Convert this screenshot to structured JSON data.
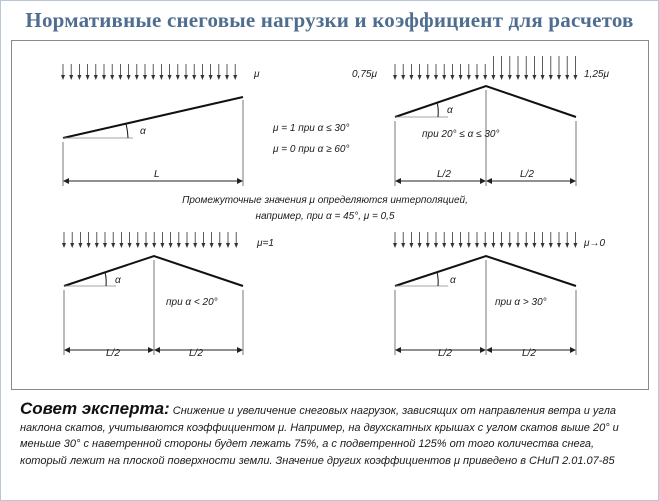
{
  "title": "Нормативные снеговые нагрузки и коэффициент для расчетов",
  "diagram": {
    "panel1": {
      "mu": "μ",
      "angle": "α",
      "span": "L",
      "rule1": "μ = 1 при α ≤ 30°",
      "rule2": "μ = 0 при α ≥ 60°"
    },
    "panel2": {
      "mu_left": "0,75μ",
      "mu_right": "1,25μ",
      "angle": "α",
      "cond": "при 20° ≤ α ≤ 30°",
      "half_left": "L/2",
      "half_right": "L/2"
    },
    "note_line1": "Промежуточные значения μ определяются интерполяцией,",
    "note_line2": "например, при α = 45°, μ = 0,5",
    "panel3": {
      "mu": "μ=1",
      "angle": "α",
      "cond": "при α < 20°",
      "half_left": "L/2",
      "half_right": "L/2"
    },
    "panel4": {
      "mu": "μ→0",
      "angle": "α",
      "cond": "при α > 30°",
      "half_left": "L/2",
      "half_right": "L/2"
    }
  },
  "tip": {
    "heading": "Совет эксперта:",
    "text": "Снижение и увеличение снеговых нагрузок, зависящих от направления ветра и угла наклона скатов, учитываются коэффициентом μ. Например, на двухскатных крышах с углом скатов выше 20° и меньше 30° с наветренной стороны будет лежать 75%, а с подветренной 125% от того количества снега, который лежит на плоской поверхности земли. Значение других коэффициентов μ приведено в СНиП 2.01.07-85"
  }
}
